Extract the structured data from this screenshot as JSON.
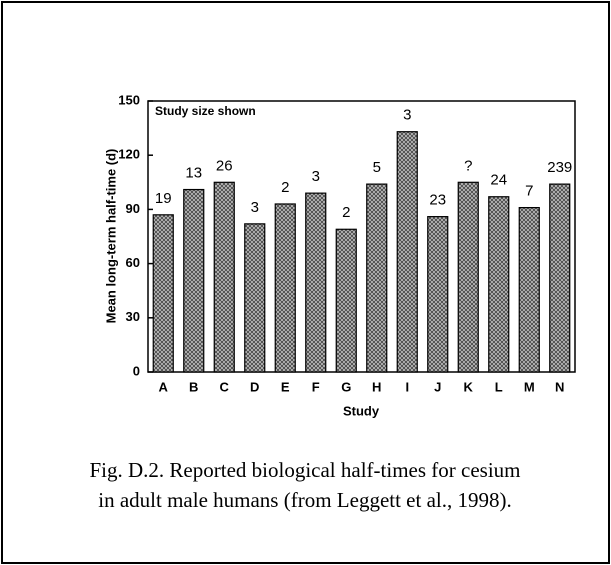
{
  "chart_data": {
    "type": "bar",
    "ylabel": "Mean long-term half-time (d)",
    "xlabel": "Study",
    "annotation": "Study size shown",
    "categories": [
      "A",
      "B",
      "C",
      "D",
      "E",
      "F",
      "G",
      "H",
      "I",
      "J",
      "K",
      "L",
      "M",
      "N"
    ],
    "values": [
      87,
      101,
      105,
      82,
      93,
      99,
      79,
      104,
      133,
      86,
      105,
      97,
      91,
      104
    ],
    "study_sizes": [
      "19",
      "13",
      "26",
      "3",
      "2",
      "3",
      "2",
      "5",
      "3",
      "23",
      "?",
      "24",
      "7",
      "239"
    ],
    "color": "#bbbbbb",
    "ylim": [
      0,
      150
    ],
    "yticks": [
      0,
      30,
      60,
      90,
      120,
      150
    ]
  },
  "caption": [
    "Fig. D.2. Reported biological half-times for cesium",
    "in adult male humans (from Leggett et al., 1998)."
  ]
}
